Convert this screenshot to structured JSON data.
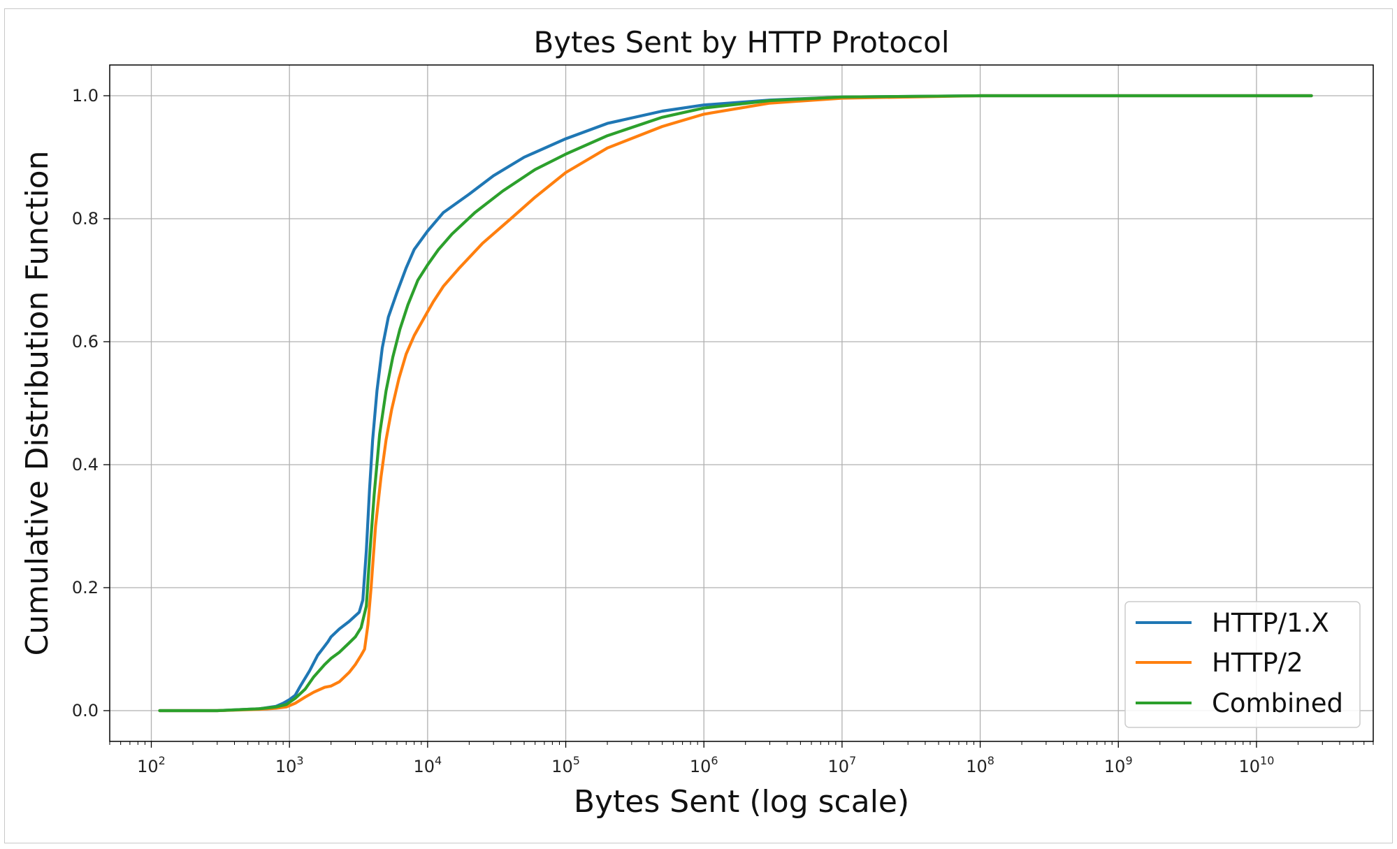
{
  "chart_data": {
    "type": "line",
    "title": "Bytes Sent by HTTP Protocol",
    "xlabel": "Bytes Sent (log scale)",
    "ylabel": "Cumulative Distribution Function",
    "xscale": "log",
    "xlim": [
      50,
      70000000000
    ],
    "ylim": [
      -0.05,
      1.05
    ],
    "x_ticks": [
      {
        "base": "10",
        "exp": "2",
        "value": 100
      },
      {
        "base": "10",
        "exp": "3",
        "value": 1000
      },
      {
        "base": "10",
        "exp": "4",
        "value": 10000
      },
      {
        "base": "10",
        "exp": "5",
        "value": 100000
      },
      {
        "base": "10",
        "exp": "6",
        "value": 1000000
      },
      {
        "base": "10",
        "exp": "7",
        "value": 10000000
      },
      {
        "base": "10",
        "exp": "8",
        "value": 100000000
      },
      {
        "base": "10",
        "exp": "9",
        "value": 1000000000
      },
      {
        "base": "10",
        "exp": "10",
        "value": 10000000000
      }
    ],
    "y_ticks": [
      "0.0",
      "0.2",
      "0.4",
      "0.6",
      "0.8",
      "1.0"
    ],
    "grid": true,
    "legend_position": "bottom-right",
    "series": [
      {
        "name": "HTTP/1.X",
        "color": "#1f77b4",
        "points": [
          [
            115,
            0.0
          ],
          [
            300,
            0.0
          ],
          [
            600,
            0.003
          ],
          [
            800,
            0.007
          ],
          [
            900,
            0.012
          ],
          [
            1000,
            0.018
          ],
          [
            1100,
            0.025
          ],
          [
            1200,
            0.04
          ],
          [
            1400,
            0.065
          ],
          [
            1600,
            0.09
          ],
          [
            1800,
            0.105
          ],
          [
            1900,
            0.112
          ],
          [
            2000,
            0.12
          ],
          [
            2300,
            0.133
          ],
          [
            2700,
            0.145
          ],
          [
            3200,
            0.16
          ],
          [
            3400,
            0.18
          ],
          [
            3600,
            0.26
          ],
          [
            3800,
            0.36
          ],
          [
            4000,
            0.44
          ],
          [
            4300,
            0.52
          ],
          [
            4700,
            0.59
          ],
          [
            5200,
            0.64
          ],
          [
            6000,
            0.68
          ],
          [
            7000,
            0.72
          ],
          [
            8000,
            0.75
          ],
          [
            10000,
            0.78
          ],
          [
            13000,
            0.81
          ],
          [
            20000,
            0.84
          ],
          [
            30000,
            0.87
          ],
          [
            50000,
            0.9
          ],
          [
            100000,
            0.93
          ],
          [
            200000,
            0.955
          ],
          [
            500000,
            0.975
          ],
          [
            1000000,
            0.985
          ],
          [
            3000000,
            0.993
          ],
          [
            10000000,
            0.998
          ],
          [
            100000000,
            1.0
          ],
          [
            25000000000,
            1.0
          ]
        ]
      },
      {
        "name": "HTTP/2",
        "color": "#ff7f0e",
        "points": [
          [
            115,
            0.0
          ],
          [
            300,
            0.0
          ],
          [
            600,
            0.002
          ],
          [
            800,
            0.004
          ],
          [
            950,
            0.006
          ],
          [
            1100,
            0.012
          ],
          [
            1300,
            0.022
          ],
          [
            1500,
            0.03
          ],
          [
            1800,
            0.038
          ],
          [
            2000,
            0.04
          ],
          [
            2300,
            0.047
          ],
          [
            2700,
            0.062
          ],
          [
            3000,
            0.075
          ],
          [
            3300,
            0.09
          ],
          [
            3500,
            0.1
          ],
          [
            3700,
            0.14
          ],
          [
            3900,
            0.2
          ],
          [
            4200,
            0.3
          ],
          [
            4600,
            0.38
          ],
          [
            5000,
            0.44
          ],
          [
            5500,
            0.49
          ],
          [
            6200,
            0.54
          ],
          [
            7000,
            0.58
          ],
          [
            8000,
            0.61
          ],
          [
            9500,
            0.64
          ],
          [
            11000,
            0.665
          ],
          [
            13000,
            0.69
          ],
          [
            17000,
            0.72
          ],
          [
            25000,
            0.76
          ],
          [
            40000,
            0.8
          ],
          [
            60000,
            0.835
          ],
          [
            100000,
            0.875
          ],
          [
            200000,
            0.915
          ],
          [
            500000,
            0.95
          ],
          [
            1000000,
            0.97
          ],
          [
            3000000,
            0.988
          ],
          [
            10000000,
            0.996
          ],
          [
            100000000,
            1.0
          ],
          [
            25000000000,
            1.0
          ]
        ]
      },
      {
        "name": "Combined",
        "color": "#2ca02c",
        "points": [
          [
            115,
            0.0
          ],
          [
            300,
            0.0
          ],
          [
            600,
            0.003
          ],
          [
            800,
            0.006
          ],
          [
            950,
            0.01
          ],
          [
            1100,
            0.02
          ],
          [
            1300,
            0.035
          ],
          [
            1500,
            0.055
          ],
          [
            1800,
            0.075
          ],
          [
            2000,
            0.085
          ],
          [
            2300,
            0.095
          ],
          [
            2700,
            0.11
          ],
          [
            3000,
            0.12
          ],
          [
            3300,
            0.135
          ],
          [
            3600,
            0.17
          ],
          [
            3800,
            0.25
          ],
          [
            4100,
            0.35
          ],
          [
            4500,
            0.45
          ],
          [
            5000,
            0.52
          ],
          [
            5600,
            0.575
          ],
          [
            6300,
            0.62
          ],
          [
            7200,
            0.66
          ],
          [
            8500,
            0.7
          ],
          [
            10000,
            0.725
          ],
          [
            12000,
            0.75
          ],
          [
            15000,
            0.775
          ],
          [
            22000,
            0.81
          ],
          [
            35000,
            0.845
          ],
          [
            60000,
            0.88
          ],
          [
            100000,
            0.905
          ],
          [
            200000,
            0.935
          ],
          [
            500000,
            0.965
          ],
          [
            1000000,
            0.98
          ],
          [
            3000000,
            0.992
          ],
          [
            10000000,
            0.998
          ],
          [
            100000000,
            1.0
          ],
          [
            25000000000,
            1.0
          ]
        ]
      }
    ]
  }
}
